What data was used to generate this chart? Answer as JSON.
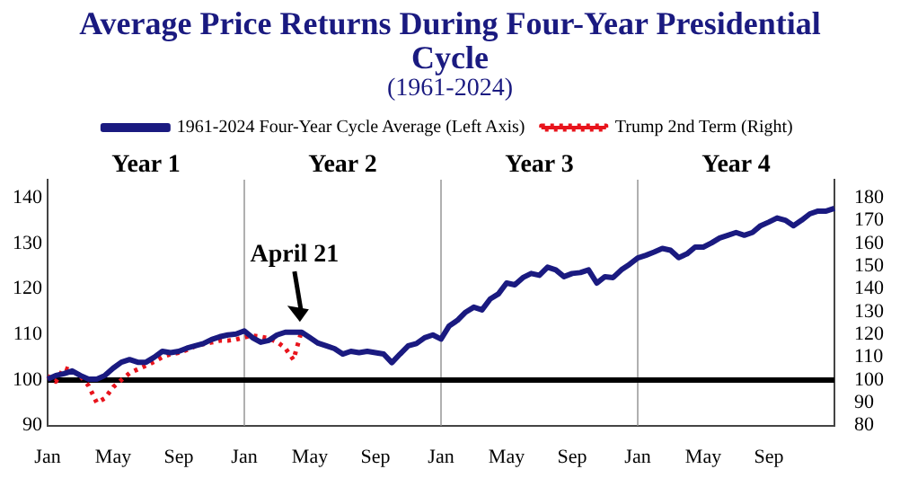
{
  "chart_data": {
    "type": "line",
    "title": "Average Price Returns During Four-Year Presidential Cycle",
    "subtitle": "(1961-2024)",
    "categories": [
      "Jan",
      null,
      null,
      null,
      null,
      null,
      null,
      null,
      "May",
      null,
      null,
      null,
      null,
      null,
      null,
      null,
      "Sep",
      null,
      null,
      null,
      null,
      null,
      null,
      null,
      "Jan",
      null,
      null,
      null,
      null,
      null,
      null,
      null,
      "May",
      null,
      null,
      null,
      null,
      null,
      null,
      null,
      "Sep",
      null,
      null,
      null,
      null,
      null,
      null,
      null,
      "Jan",
      null,
      null,
      null,
      null,
      null,
      null,
      null,
      "May",
      null,
      null,
      null,
      null,
      null,
      null,
      null,
      "Sep",
      null,
      null,
      null,
      null,
      null,
      null,
      null,
      "Jan",
      null,
      null,
      null,
      null,
      null,
      null,
      null,
      "May",
      null,
      null,
      null,
      null,
      null,
      null,
      null,
      "Sep",
      null,
      null,
      null,
      null,
      null,
      null,
      null,
      null
    ],
    "series": [
      {
        "name": "1961-2024 Four-Year Cycle Average (Left Axis)",
        "color": "#1a1a80",
        "line_style": "solid",
        "values": [
          100.2,
          101,
          101.4,
          102,
          101,
          100.2,
          100.2,
          101,
          102.6,
          103.9,
          104.5,
          103.9,
          103.9,
          105,
          106.3,
          106,
          106.3,
          107,
          107.5,
          108,
          108.9,
          109.5,
          109.9,
          110.1,
          110.8,
          109.3,
          108.3,
          108.7,
          109.9,
          110.5,
          110.5,
          110.5,
          109.3,
          108.1,
          107.5,
          106.9,
          105.7,
          106.3,
          106,
          106.3,
          106,
          105.7,
          103.8,
          105.7,
          107.5,
          108,
          109.3,
          109.9,
          109,
          111.9,
          113.1,
          114.9,
          116,
          115.4,
          117.8,
          118.9,
          121.3,
          120.9,
          122.5,
          123.4,
          123,
          124.8,
          124.2,
          122.7,
          123.4,
          123.6,
          124.2,
          121.3,
          122.7,
          122.5,
          124.2,
          125.4,
          126.8,
          127.4,
          128.1,
          128.9,
          128.5,
          126.9,
          127.7,
          129.2,
          129.2,
          130.1,
          131.2,
          131.8,
          132.4,
          131.8,
          132.4,
          133.9,
          134.7,
          135.6,
          135.1,
          133.9,
          135.1,
          136.5,
          137.1,
          137.1,
          137.7
        ]
      },
      {
        "name": "Trump 2nd Term (Right)",
        "color": "#e8141c",
        "axis": "y2",
        "line_style": "dotted",
        "values": [
          101.7,
          99.3,
          105.3,
          104.1,
          101.7,
          97.5,
          90,
          92,
          96.9,
          100,
          103,
          104.7,
          106.3,
          108,
          110.1,
          111.3,
          112,
          113.2,
          114.9,
          115.8,
          116.5,
          117.3,
          117.3,
          117.8,
          118.8,
          119.5,
          119,
          118.3,
          116.7,
          114,
          108.9,
          121.7,
          null,
          null,
          null,
          null,
          null,
          null,
          null,
          null,
          null,
          null,
          null,
          null,
          null,
          null,
          null,
          null,
          null,
          null,
          null,
          null,
          null,
          null,
          null,
          null,
          null,
          null,
          null,
          null,
          null,
          null,
          null,
          null,
          null,
          null,
          null,
          null,
          null,
          null,
          null,
          null,
          null,
          null,
          null,
          null,
          null,
          null,
          null,
          null,
          null,
          null,
          null,
          null,
          null,
          null,
          null,
          null,
          null,
          null,
          null,
          null,
          null,
          null,
          null,
          null,
          null
        ]
      }
    ],
    "ylim": [
      90,
      144
    ],
    "yticks": [
      90,
      100,
      110,
      120,
      130,
      140
    ],
    "y2lim": [
      80,
      188
    ],
    "y2ticks": [
      80,
      90,
      100,
      110,
      120,
      130,
      140,
      150,
      160,
      170,
      180
    ],
    "ref_lines": [
      {
        "axis": "y",
        "value": 100,
        "color": "#000000"
      }
    ],
    "annotations": [
      "Year 1",
      "Year 2",
      "Year 3",
      "Year 4",
      {
        "text": "April 21",
        "y": 111.2
      }
    ],
    "legend": "top",
    "marker": "none"
  }
}
